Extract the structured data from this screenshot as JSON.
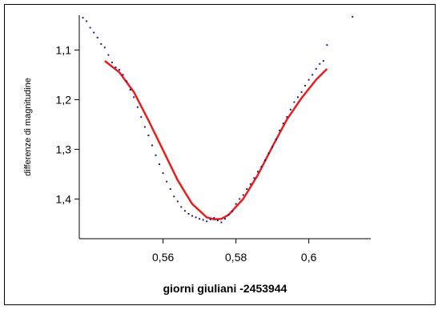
{
  "chart_data": {
    "type": "scatter",
    "xlabel": "giorni giuliani -2453944",
    "ylabel": "differenze di magnitudine",
    "xlim": [
      0.537,
      0.617
    ],
    "ylim": [
      1.03,
      1.48
    ],
    "y_inverted": true,
    "x_ticks": [
      0.56,
      0.58,
      0.6
    ],
    "x_tick_labels": [
      "0,56",
      "0,58",
      "0,6"
    ],
    "y_ticks": [
      1.1,
      1.2,
      1.3,
      1.4
    ],
    "y_tick_labels": [
      "1,1",
      "1,2",
      "1,3",
      "1,4"
    ],
    "grid": false,
    "colors": {
      "points": "#1f1f7a",
      "fit": "#e81e1e"
    },
    "series": [
      {
        "kind": "points",
        "x": [
          0.538,
          0.539,
          0.54,
          0.541,
          0.542,
          0.543,
          0.544,
          0.545,
          0.546,
          0.547,
          0.548,
          0.549,
          0.55,
          0.551,
          0.552,
          0.553,
          0.554,
          0.555,
          0.556,
          0.557,
          0.558,
          0.559,
          0.56,
          0.561,
          0.562,
          0.563,
          0.564,
          0.565,
          0.566,
          0.567,
          0.568,
          0.569,
          0.57,
          0.571,
          0.572,
          0.573,
          0.574,
          0.575,
          0.576,
          0.577,
          0.578,
          0.579,
          0.58,
          0.581,
          0.582,
          0.583,
          0.584,
          0.585,
          0.586,
          0.587,
          0.588,
          0.589,
          0.59,
          0.591,
          0.592,
          0.593,
          0.594,
          0.595,
          0.596,
          0.597,
          0.598,
          0.599,
          0.6,
          0.601,
          0.602,
          0.603,
          0.604,
          0.605,
          0.612
        ],
        "y": [
          1.035,
          1.042,
          1.055,
          1.065,
          1.075,
          1.088,
          1.095,
          1.11,
          1.125,
          1.135,
          1.14,
          1.15,
          1.163,
          1.18,
          1.195,
          1.215,
          1.235,
          1.255,
          1.272,
          1.292,
          1.312,
          1.33,
          1.348,
          1.365,
          1.38,
          1.395,
          1.405,
          1.416,
          1.424,
          1.43,
          1.434,
          1.437,
          1.44,
          1.442,
          1.445,
          1.441,
          1.438,
          1.443,
          1.447,
          1.44,
          1.432,
          1.425,
          1.41,
          1.4,
          1.392,
          1.38,
          1.37,
          1.358,
          1.345,
          1.335,
          1.322,
          1.308,
          1.295,
          1.28,
          1.262,
          1.248,
          1.235,
          1.22,
          1.205,
          1.195,
          1.185,
          1.172,
          1.16,
          1.15,
          1.138,
          1.128,
          1.122,
          1.09,
          1.033
        ]
      },
      {
        "kind": "fit",
        "x": [
          0.544,
          0.548,
          0.552,
          0.556,
          0.56,
          0.564,
          0.568,
          0.572,
          0.574,
          0.576,
          0.578,
          0.582,
          0.586,
          0.59,
          0.594,
          0.598,
          0.602,
          0.605
        ],
        "y": [
          1.122,
          1.145,
          1.185,
          1.242,
          1.302,
          1.362,
          1.41,
          1.437,
          1.441,
          1.44,
          1.432,
          1.4,
          1.352,
          1.295,
          1.24,
          1.197,
          1.16,
          1.138
        ]
      }
    ]
  }
}
